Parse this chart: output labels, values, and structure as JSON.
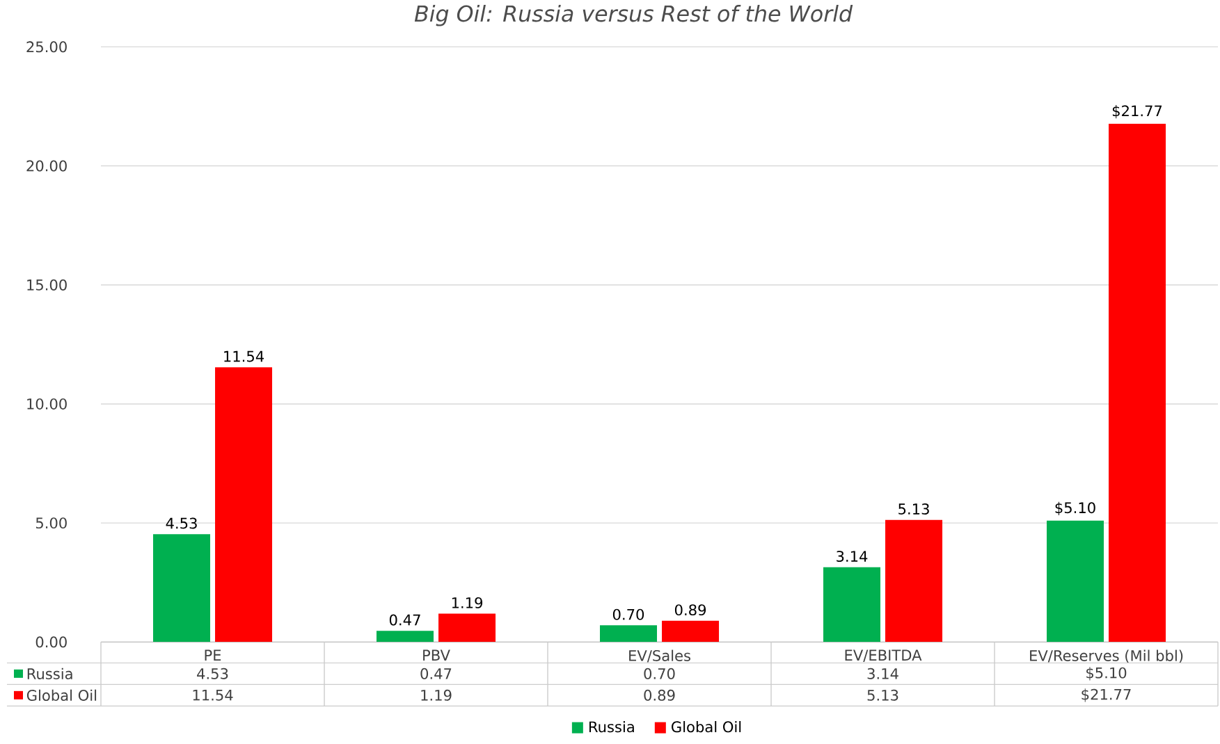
{
  "chart_data": {
    "type": "bar",
    "title": "Big Oil: Russia versus Rest of the World",
    "categories": [
      "PE",
      "PBV",
      "EV/Sales",
      "EV/EBITDA",
      "EV/Reserves (Mil bbl)"
    ],
    "series": [
      {
        "name": "Russia",
        "color": "#00b050",
        "values": [
          4.53,
          0.47,
          0.7,
          3.14,
          5.1
        ],
        "value_labels": [
          "4.53",
          "0.47",
          "0.70",
          "3.14",
          "$5.10"
        ]
      },
      {
        "name": "Global Oil",
        "color": "#ff0000",
        "values": [
          11.54,
          1.19,
          0.89,
          5.13,
          21.77
        ],
        "value_labels": [
          "11.54",
          "1.19",
          "0.89",
          "5.13",
          "$21.77"
        ]
      }
    ],
    "ylim": [
      0,
      25
    ],
    "yticks": [
      {
        "value": 0,
        "label": "0.00"
      },
      {
        "value": 5,
        "label": "5.00"
      },
      {
        "value": 10,
        "label": "10.00"
      },
      {
        "value": 15,
        "label": "15.00"
      },
      {
        "value": 20,
        "label": "20.00"
      },
      {
        "value": 25,
        "label": "25.00"
      }
    ],
    "grid": "y",
    "legend": "bottom"
  }
}
